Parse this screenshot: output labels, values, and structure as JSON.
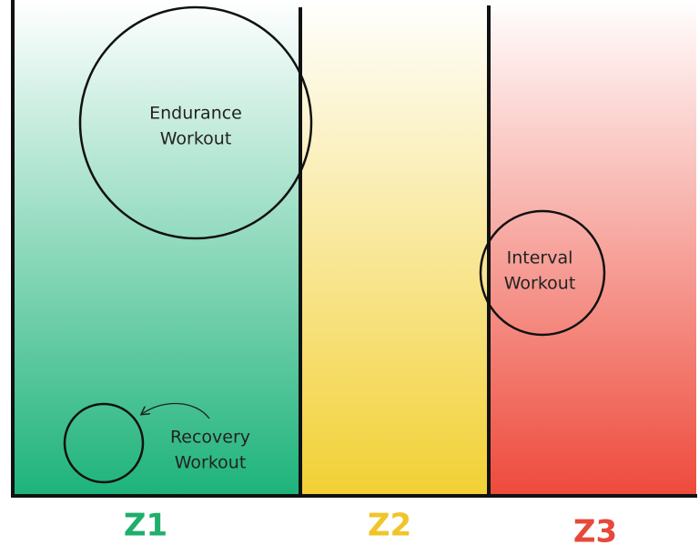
{
  "zones": [
    {
      "label": "Z1"
    },
    {
      "label": "Z2"
    },
    {
      "label": "Z3"
    }
  ],
  "workouts": [
    {
      "lines": [
        "Endurance",
        "Workout"
      ]
    },
    {
      "lines": [
        "Interval",
        "Workout"
      ]
    },
    {
      "lines": [
        "Recovery",
        "Workout"
      ]
    }
  ]
}
